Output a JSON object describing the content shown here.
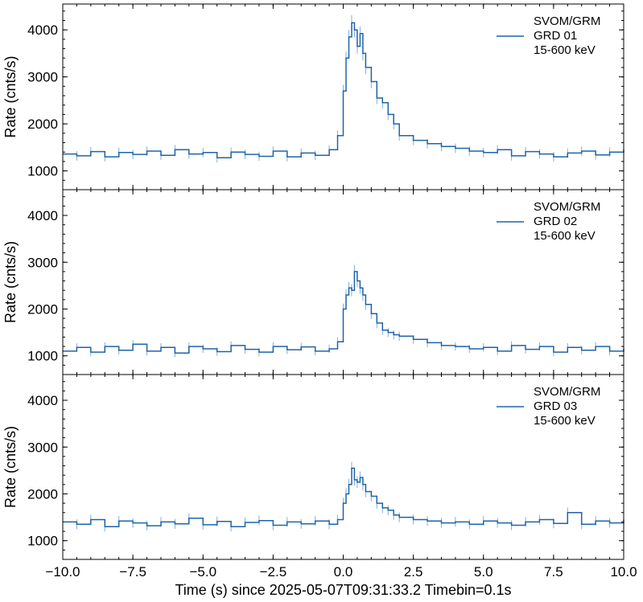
{
  "chart_data": [
    {
      "type": "line",
      "style": "step-with-errorbars",
      "title": "",
      "ylabel": "Rate (cnts/s)",
      "xlim": [
        -10,
        10
      ],
      "ylim": [
        600,
        4550
      ],
      "yticks": [
        1000,
        2000,
        3000,
        4000
      ],
      "legend": {
        "placement": "top-right",
        "lines": [
          "SVOM/GRM",
          "GRD 01",
          "15-600 keV"
        ]
      },
      "color": "#1f63a8",
      "errorbar_color": "#7fb0dd",
      "series": [
        {
          "name": "SVOM/GRM GRD 01 15-600 keV",
          "x": [
            -10.0,
            -9.5,
            -9.0,
            -8.5,
            -8.0,
            -7.5,
            -7.0,
            -6.5,
            -6.0,
            -5.5,
            -5.0,
            -4.5,
            -4.0,
            -3.5,
            -3.0,
            -2.5,
            -2.0,
            -1.5,
            -1.0,
            -0.5,
            -0.2,
            0.0,
            0.1,
            0.2,
            0.3,
            0.4,
            0.5,
            0.6,
            0.7,
            0.8,
            1.0,
            1.2,
            1.4,
            1.6,
            1.8,
            2.0,
            2.5,
            3.0,
            3.5,
            4.0,
            4.5,
            5.0,
            5.5,
            6.0,
            6.5,
            7.0,
            7.5,
            8.0,
            8.5,
            9.0,
            9.5,
            10.0
          ],
          "y": [
            1360,
            1320,
            1410,
            1300,
            1390,
            1350,
            1420,
            1330,
            1450,
            1360,
            1390,
            1280,
            1400,
            1350,
            1310,
            1420,
            1300,
            1380,
            1330,
            1450,
            1750,
            2700,
            3400,
            3850,
            4150,
            4000,
            3650,
            3920,
            3500,
            3200,
            2900,
            2550,
            2450,
            2200,
            2000,
            1750,
            1650,
            1580,
            1520,
            1480,
            1420,
            1390,
            1450,
            1320,
            1410,
            1360,
            1300,
            1380,
            1420,
            1340,
            1400,
            1450
          ],
          "err": [
            100,
            100,
            100,
            100,
            100,
            100,
            100,
            100,
            100,
            100,
            100,
            100,
            100,
            100,
            100,
            100,
            100,
            100,
            100,
            100,
            110,
            130,
            140,
            150,
            160,
            160,
            155,
            158,
            150,
            145,
            140,
            130,
            125,
            120,
            115,
            110,
            105,
            105,
            100,
            100,
            100,
            100,
            100,
            100,
            100,
            100,
            100,
            100,
            100,
            100,
            100,
            100
          ]
        }
      ]
    },
    {
      "type": "line",
      "style": "step-with-errorbars",
      "title": "",
      "ylabel": "Rate (cnts/s)",
      "xlim": [
        -10,
        10
      ],
      "ylim": [
        600,
        4550
      ],
      "yticks": [
        1000,
        2000,
        3000,
        4000
      ],
      "legend": {
        "placement": "top-right",
        "lines": [
          "SVOM/GRM",
          "GRD 02",
          "15-600 keV"
        ]
      },
      "color": "#1f63a8",
      "errorbar_color": "#7fb0dd",
      "series": [
        {
          "name": "SVOM/GRM GRD 02 15-600 keV",
          "x": [
            -10.0,
            -9.5,
            -9.0,
            -8.5,
            -8.0,
            -7.5,
            -7.0,
            -6.5,
            -6.0,
            -5.5,
            -5.0,
            -4.5,
            -4.0,
            -3.5,
            -3.0,
            -2.5,
            -2.0,
            -1.5,
            -1.0,
            -0.5,
            -0.2,
            0.0,
            0.1,
            0.2,
            0.3,
            0.4,
            0.5,
            0.6,
            0.7,
            0.8,
            1.0,
            1.2,
            1.4,
            1.6,
            1.8,
            2.0,
            2.5,
            3.0,
            3.5,
            4.0,
            4.5,
            5.0,
            5.5,
            6.0,
            6.5,
            7.0,
            7.5,
            8.0,
            8.5,
            9.0,
            9.5,
            10.0
          ],
          "y": [
            1100,
            1180,
            1080,
            1200,
            1120,
            1250,
            1100,
            1180,
            1060,
            1200,
            1150,
            1090,
            1220,
            1140,
            1080,
            1200,
            1130,
            1190,
            1100,
            1150,
            1300,
            2000,
            2300,
            2450,
            2400,
            2800,
            2600,
            2450,
            2300,
            2100,
            1900,
            1700,
            1550,
            1500,
            1450,
            1420,
            1350,
            1280,
            1220,
            1200,
            1150,
            1180,
            1100,
            1220,
            1140,
            1200,
            1080,
            1180,
            1120,
            1200,
            1100,
            1150
          ],
          "err": [
            90,
            90,
            90,
            90,
            90,
            90,
            90,
            90,
            90,
            90,
            90,
            90,
            90,
            90,
            90,
            90,
            90,
            90,
            90,
            90,
            95,
            115,
            125,
            130,
            130,
            140,
            135,
            130,
            125,
            120,
            115,
            110,
            105,
            100,
            100,
            100,
            95,
            95,
            90,
            90,
            90,
            90,
            90,
            90,
            90,
            90,
            90,
            90,
            90,
            90,
            90,
            90
          ]
        }
      ]
    },
    {
      "type": "line",
      "style": "step-with-errorbars",
      "title": "",
      "xlabel": "Time (s) since 2025-05-07T09:31:33.2 Timebin=0.1s",
      "ylabel": "Rate (cnts/s)",
      "xlim": [
        -10,
        10
      ],
      "ylim": [
        600,
        4550
      ],
      "xticks": [
        -10.0,
        -7.5,
        -5.0,
        -2.5,
        0.0,
        2.5,
        5.0,
        7.5,
        10.0
      ],
      "xtick_labels": [
        "−10.0",
        "−7.5",
        "−5.0",
        "−2.5",
        "0.0",
        "2.5",
        "5.0",
        "7.5",
        "10.0"
      ],
      "yticks": [
        1000,
        2000,
        3000,
        4000
      ],
      "legend": {
        "placement": "top-right",
        "lines": [
          "SVOM/GRM",
          "GRD 03",
          "15-600 keV"
        ]
      },
      "color": "#1f63a8",
      "errorbar_color": "#7fb0dd",
      "series": [
        {
          "name": "SVOM/GRM GRD 03 15-600 keV",
          "x": [
            -10.0,
            -9.5,
            -9.0,
            -8.5,
            -8.0,
            -7.5,
            -7.0,
            -6.5,
            -6.0,
            -5.5,
            -5.0,
            -4.5,
            -4.0,
            -3.5,
            -3.0,
            -2.5,
            -2.0,
            -1.5,
            -1.0,
            -0.5,
            -0.2,
            0.0,
            0.1,
            0.2,
            0.3,
            0.4,
            0.5,
            0.6,
            0.7,
            0.8,
            1.0,
            1.2,
            1.4,
            1.6,
            1.8,
            2.0,
            2.5,
            3.0,
            3.5,
            4.0,
            4.5,
            5.0,
            5.5,
            6.0,
            6.5,
            7.0,
            7.5,
            8.0,
            8.5,
            9.0,
            9.5,
            10.0
          ],
          "y": [
            1400,
            1350,
            1450,
            1300,
            1420,
            1380,
            1320,
            1400,
            1360,
            1480,
            1340,
            1410,
            1300,
            1390,
            1430,
            1330,
            1400,
            1360,
            1420,
            1350,
            1450,
            1800,
            2000,
            2200,
            2550,
            2300,
            2250,
            2350,
            2200,
            2050,
            1950,
            1800,
            1700,
            1650,
            1550,
            1500,
            1450,
            1420,
            1380,
            1400,
            1350,
            1420,
            1380,
            1330,
            1400,
            1450,
            1370,
            1600,
            1350,
            1420,
            1380,
            1450
          ],
          "err": [
            105,
            105,
            105,
            105,
            105,
            105,
            105,
            105,
            105,
            105,
            105,
            105,
            105,
            105,
            105,
            105,
            105,
            105,
            105,
            105,
            105,
            115,
            120,
            125,
            135,
            128,
            126,
            130,
            125,
            120,
            118,
            115,
            110,
            108,
            105,
            105,
            105,
            105,
            105,
            105,
            105,
            105,
            105,
            105,
            105,
            105,
            105,
            110,
            105,
            105,
            105,
            105
          ]
        }
      ]
    }
  ]
}
